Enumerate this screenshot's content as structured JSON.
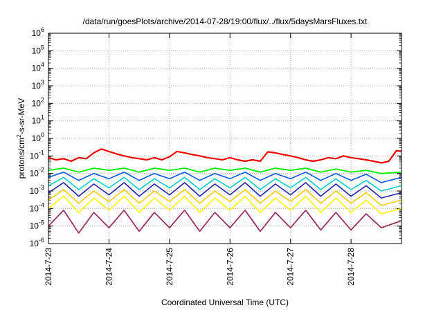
{
  "chart_data": {
    "type": "line",
    "title": "/data/run/goesPlots/archive/2014-07-28/19:00/flux/../flux/5daysMarsFluxes.txt",
    "xlabel": "Coordinated Universal Time (UTC)",
    "ylabel_parts": {
      "prefix": "protons/cm",
      "sup": "2",
      "suffix": "-s-sr-MeV"
    },
    "y_scale": "log",
    "ylim": [
      1e-06,
      1000000.0
    ],
    "xlim": [
      "2014-07-23 00:00",
      "2014-07-28 20:00"
    ],
    "grid": true,
    "legend": "none",
    "y_ticks": [
      {
        "base": "10",
        "exp": "-6"
      },
      {
        "base": "10",
        "exp": "-5"
      },
      {
        "base": "10",
        "exp": "-4"
      },
      {
        "base": "10",
        "exp": "-3"
      },
      {
        "base": "10",
        "exp": "-2"
      },
      {
        "base": "10",
        "exp": "-1"
      },
      {
        "base": "10",
        "exp": "0"
      },
      {
        "base": "10",
        "exp": "1"
      },
      {
        "base": "10",
        "exp": "2"
      },
      {
        "base": "10",
        "exp": "3"
      },
      {
        "base": "10",
        "exp": "4"
      },
      {
        "base": "10",
        "exp": "5"
      },
      {
        "base": "10",
        "exp": "6"
      }
    ],
    "x_ticks": [
      "2014-7-23",
      "2014-7-24",
      "2014-7-25",
      "2014-7-26",
      "2014-7-27",
      "2014-7-28"
    ],
    "series": [
      {
        "color": "#ee0000",
        "width": 2.2,
        "x": [
          "2014-07-23 00:00",
          "2014-07-23 03:00",
          "2014-07-23 06:00",
          "2014-07-23 09:00",
          "2014-07-23 12:00",
          "2014-07-23 15:00",
          "2014-07-23 18:00",
          "2014-07-23 21:00",
          "2014-07-24 00:00",
          "2014-07-24 03:00",
          "2014-07-24 06:00",
          "2014-07-24 09:00",
          "2014-07-24 12:00",
          "2014-07-24 15:00",
          "2014-07-24 18:00",
          "2014-07-24 21:00",
          "2014-07-25 00:00",
          "2014-07-25 03:00",
          "2014-07-25 06:00",
          "2014-07-25 09:00",
          "2014-07-25 12:00",
          "2014-07-25 15:00",
          "2014-07-25 18:00",
          "2014-07-25 21:00",
          "2014-07-26 00:00",
          "2014-07-26 03:00",
          "2014-07-26 06:00",
          "2014-07-26 09:00",
          "2014-07-26 12:00",
          "2014-07-26 15:00",
          "2014-07-26 18:00",
          "2014-07-26 21:00",
          "2014-07-27 00:00",
          "2014-07-27 03:00",
          "2014-07-27 06:00",
          "2014-07-27 09:00",
          "2014-07-27 12:00",
          "2014-07-27 15:00",
          "2014-07-27 18:00",
          "2014-07-27 21:00",
          "2014-07-28 00:00",
          "2014-07-28 03:00",
          "2014-07-28 06:00",
          "2014-07-28 09:00",
          "2014-07-28 12:00",
          "2014-07-28 15:00",
          "2014-07-28 18:00",
          "2014-07-28 20:00"
        ],
        "y": [
          0.08,
          0.06,
          0.07,
          0.05,
          0.08,
          0.07,
          0.15,
          0.25,
          0.18,
          0.13,
          0.1,
          0.08,
          0.07,
          0.06,
          0.08,
          0.06,
          0.09,
          0.18,
          0.15,
          0.12,
          0.1,
          0.08,
          0.07,
          0.06,
          0.08,
          0.06,
          0.05,
          0.06,
          0.05,
          0.17,
          0.15,
          0.12,
          0.1,
          0.08,
          0.06,
          0.05,
          0.06,
          0.08,
          0.07,
          0.1,
          0.08,
          0.07,
          0.06,
          0.05,
          0.04,
          0.05,
          0.2,
          0.18
        ]
      },
      {
        "color": "#00ee00",
        "width": 1.8,
        "x": [
          "2014-07-23 00:00",
          "2014-07-23 06:00",
          "2014-07-23 12:00",
          "2014-07-23 18:00",
          "2014-07-24 00:00",
          "2014-07-24 06:00",
          "2014-07-24 12:00",
          "2014-07-24 18:00",
          "2014-07-25 00:00",
          "2014-07-25 06:00",
          "2014-07-25 12:00",
          "2014-07-25 18:00",
          "2014-07-26 00:00",
          "2014-07-26 06:00",
          "2014-07-26 12:00",
          "2014-07-26 18:00",
          "2014-07-27 00:00",
          "2014-07-27 06:00",
          "2014-07-27 12:00",
          "2014-07-27 18:00",
          "2014-07-28 00:00",
          "2014-07-28 06:00",
          "2014-07-28 12:00",
          "2014-07-28 20:00"
        ],
        "y": [
          0.015,
          0.02,
          0.012,
          0.02,
          0.015,
          0.02,
          0.012,
          0.02,
          0.015,
          0.02,
          0.012,
          0.02,
          0.015,
          0.02,
          0.012,
          0.02,
          0.015,
          0.02,
          0.012,
          0.018,
          0.012,
          0.015,
          0.01,
          0.012
        ]
      },
      {
        "color": "#0055ee",
        "width": 1.6,
        "x": [
          "2014-07-23 00:00",
          "2014-07-23 06:00",
          "2014-07-23 12:00",
          "2014-07-23 18:00",
          "2014-07-24 00:00",
          "2014-07-24 06:00",
          "2014-07-24 12:00",
          "2014-07-24 18:00",
          "2014-07-25 00:00",
          "2014-07-25 06:00",
          "2014-07-25 12:00",
          "2014-07-25 18:00",
          "2014-07-26 00:00",
          "2014-07-26 06:00",
          "2014-07-26 12:00",
          "2014-07-26 18:00",
          "2014-07-27 00:00",
          "2014-07-27 06:00",
          "2014-07-27 12:00",
          "2014-07-27 18:00",
          "2014-07-28 00:00",
          "2014-07-28 06:00",
          "2014-07-28 12:00",
          "2014-07-28 20:00"
        ],
        "y": [
          0.006,
          0.012,
          0.004,
          0.01,
          0.005,
          0.012,
          0.004,
          0.01,
          0.005,
          0.012,
          0.004,
          0.01,
          0.005,
          0.012,
          0.004,
          0.01,
          0.005,
          0.012,
          0.004,
          0.01,
          0.004,
          0.009,
          0.003,
          0.006
        ]
      },
      {
        "color": "#00cccc",
        "width": 1.6,
        "x": [
          "2014-07-23 00:00",
          "2014-07-23 06:00",
          "2014-07-23 12:00",
          "2014-07-23 18:00",
          "2014-07-24 00:00",
          "2014-07-24 06:00",
          "2014-07-24 12:00",
          "2014-07-24 18:00",
          "2014-07-25 00:00",
          "2014-07-25 06:00",
          "2014-07-25 12:00",
          "2014-07-25 18:00",
          "2014-07-26 00:00",
          "2014-07-26 06:00",
          "2014-07-26 12:00",
          "2014-07-26 18:00",
          "2014-07-27 00:00",
          "2014-07-27 06:00",
          "2014-07-27 12:00",
          "2014-07-27 18:00",
          "2014-07-28 00:00",
          "2014-07-28 06:00",
          "2014-07-28 12:00",
          "2014-07-28 20:00"
        ],
        "y": [
          0.002,
          0.006,
          0.0012,
          0.005,
          0.0015,
          0.006,
          0.0012,
          0.005,
          0.0015,
          0.006,
          0.0012,
          0.005,
          0.0015,
          0.006,
          0.0012,
          0.005,
          0.0015,
          0.006,
          0.0012,
          0.005,
          0.0012,
          0.004,
          0.001,
          0.002
        ]
      },
      {
        "color": "#2222aa",
        "width": 1.6,
        "x": [
          "2014-07-23 00:00",
          "2014-07-23 06:00",
          "2014-07-23 12:00",
          "2014-07-23 18:00",
          "2014-07-24 00:00",
          "2014-07-24 06:00",
          "2014-07-24 12:00",
          "2014-07-24 18:00",
          "2014-07-25 00:00",
          "2014-07-25 06:00",
          "2014-07-25 12:00",
          "2014-07-25 18:00",
          "2014-07-26 00:00",
          "2014-07-26 06:00",
          "2014-07-26 12:00",
          "2014-07-26 18:00",
          "2014-07-27 00:00",
          "2014-07-27 06:00",
          "2014-07-27 12:00",
          "2014-07-27 18:00",
          "2014-07-28 00:00",
          "2014-07-28 06:00",
          "2014-07-28 12:00",
          "2014-07-28 20:00"
        ],
        "y": [
          0.0008,
          0.003,
          0.0005,
          0.0025,
          0.0006,
          0.003,
          0.0005,
          0.0025,
          0.0006,
          0.003,
          0.0005,
          0.0025,
          0.0006,
          0.003,
          0.0005,
          0.0025,
          0.0006,
          0.003,
          0.0005,
          0.0025,
          0.0005,
          0.002,
          0.0004,
          0.0008
        ]
      },
      {
        "color": "#ffcc00",
        "width": 1.6,
        "x": [
          "2014-07-23 00:00",
          "2014-07-23 06:00",
          "2014-07-23 12:00",
          "2014-07-23 18:00",
          "2014-07-24 00:00",
          "2014-07-24 06:00",
          "2014-07-24 12:00",
          "2014-07-24 18:00",
          "2014-07-25 00:00",
          "2014-07-25 06:00",
          "2014-07-25 12:00",
          "2014-07-25 18:00",
          "2014-07-26 00:00",
          "2014-07-26 06:00",
          "2014-07-26 12:00",
          "2014-07-26 18:00",
          "2014-07-27 00:00",
          "2014-07-27 06:00",
          "2014-07-27 12:00",
          "2014-07-27 18:00",
          "2014-07-28 00:00",
          "2014-07-28 06:00",
          "2014-07-28 12:00",
          "2014-07-28 20:00"
        ],
        "y": [
          0.0003,
          0.0012,
          0.0002,
          0.001,
          0.00025,
          0.0012,
          0.0002,
          0.001,
          0.00025,
          0.0012,
          0.0002,
          0.001,
          0.00025,
          0.0012,
          0.0002,
          0.001,
          0.00025,
          0.0012,
          0.0002,
          0.001,
          0.0002,
          0.0008,
          0.00015,
          0.0003
        ]
      },
      {
        "color": "#ffff00",
        "width": 1.6,
        "x": [
          "2014-07-23 00:00",
          "2014-07-23 06:00",
          "2014-07-23 12:00",
          "2014-07-23 18:00",
          "2014-07-24 00:00",
          "2014-07-24 06:00",
          "2014-07-24 12:00",
          "2014-07-24 18:00",
          "2014-07-25 00:00",
          "2014-07-25 06:00",
          "2014-07-25 12:00",
          "2014-07-25 18:00",
          "2014-07-26 00:00",
          "2014-07-26 06:00",
          "2014-07-26 12:00",
          "2014-07-26 18:00",
          "2014-07-27 00:00",
          "2014-07-27 06:00",
          "2014-07-27 12:00",
          "2014-07-27 18:00",
          "2014-07-28 00:00",
          "2014-07-28 06:00",
          "2014-07-28 12:00",
          "2014-07-28 20:00"
        ],
        "y": [
          0.0001,
          0.0005,
          6e-05,
          0.0004,
          8e-05,
          0.0005,
          6e-05,
          0.0004,
          8e-05,
          0.0005,
          6e-05,
          0.0004,
          8e-05,
          0.0005,
          6e-05,
          0.0004,
          8e-05,
          0.0005,
          6e-05,
          0.0004,
          6e-05,
          0.0003,
          5e-05,
          0.0001
        ]
      },
      {
        "color": "#993366",
        "width": 1.8,
        "x": [
          "2014-07-23 00:00",
          "2014-07-23 06:00",
          "2014-07-23 12:00",
          "2014-07-23 18:00",
          "2014-07-24 00:00",
          "2014-07-24 06:00",
          "2014-07-24 12:00",
          "2014-07-24 18:00",
          "2014-07-25 00:00",
          "2014-07-25 06:00",
          "2014-07-25 12:00",
          "2014-07-25 18:00",
          "2014-07-26 00:00",
          "2014-07-26 06:00",
          "2014-07-26 12:00",
          "2014-07-26 18:00",
          "2014-07-27 00:00",
          "2014-07-27 06:00",
          "2014-07-27 12:00",
          "2014-07-27 18:00",
          "2014-07-28 00:00",
          "2014-07-28 06:00",
          "2014-07-28 12:00",
          "2014-07-28 20:00"
        ],
        "y": [
          1e-05,
          8e-05,
          4e-06,
          6e-05,
          8e-06,
          8e-05,
          5e-06,
          6e-05,
          8e-06,
          8e-05,
          5e-06,
          6e-05,
          8e-06,
          8e-05,
          5e-06,
          6e-05,
          8e-06,
          8e-05,
          6e-06,
          6e-05,
          6e-06,
          5e-05,
          8e-06,
          2e-05
        ]
      }
    ]
  }
}
